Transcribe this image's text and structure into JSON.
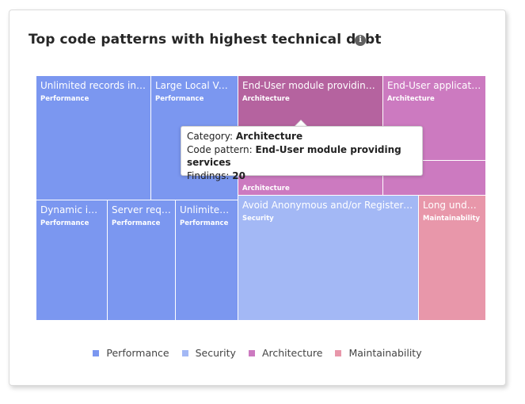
{
  "card": {
    "title": "Top code patterns with highest technical debt",
    "info_icon": "info-icon"
  },
  "colors": {
    "Performance": "#7b97f0",
    "Security": "#a3b8f5",
    "Architecture": "#cc7ac0",
    "Architecture_hover": "#b5639f",
    "Maintainability": "#e897aa"
  },
  "chart_data": {
    "type": "treemap",
    "title": "Top code patterns with highest technical debt",
    "categories": [
      "Performance",
      "Security",
      "Architecture",
      "Maintainability"
    ],
    "tiles": [
      {
        "name": "Unlimited records in A...",
        "category": "Performance"
      },
      {
        "name": "Large Local Vari...",
        "category": "Performance"
      },
      {
        "name": "End-User module providing s...",
        "category": "Architecture",
        "findings": 20
      },
      {
        "name": "End-User applicatio...",
        "category": "Architecture"
      },
      {
        "name": "",
        "category": "Architecture"
      },
      {
        "name": "",
        "category": "Architecture"
      },
      {
        "name": "Dynamic inli...",
        "category": "Performance"
      },
      {
        "name": "Server requ...",
        "category": "Performance"
      },
      {
        "name": "Unlimited r...",
        "category": "Performance"
      },
      {
        "name": "Avoid Anonymous and/or Registered ...",
        "category": "Security"
      },
      {
        "name": "Long undoc...",
        "category": "Maintainability"
      }
    ],
    "legend": [
      "Performance",
      "Security",
      "Architecture",
      "Maintainability"
    ],
    "legend_position": "bottom"
  },
  "tooltip": {
    "category_label": "Category:",
    "category_value": "Architecture",
    "pattern_label": "Code pattern:",
    "pattern_value": "End-User module providing services",
    "findings_label": "Findings:",
    "findings_value": "20"
  }
}
